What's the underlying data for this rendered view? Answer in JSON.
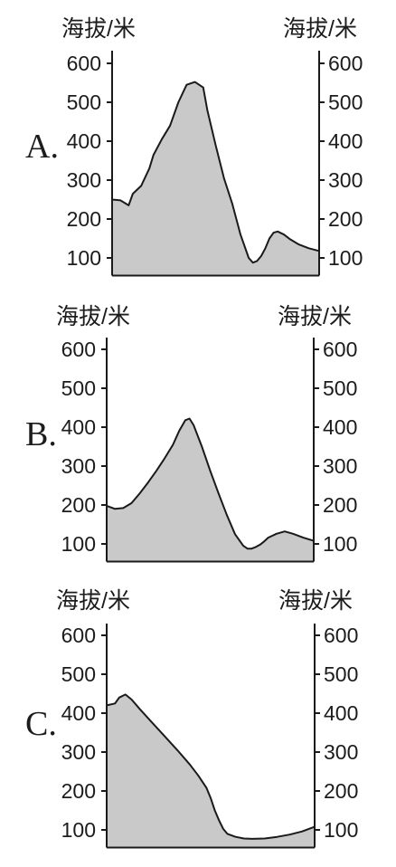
{
  "colors": {
    "fill": "#c9c9c9",
    "stroke": "#1a1a1a"
  },
  "chart_data": [
    {
      "type": "area",
      "option_label": "A.",
      "ylabel_left": "海拔/米",
      "ylabel_right": "海拔/米",
      "yticks": [
        100,
        200,
        300,
        400,
        500,
        600
      ],
      "ylim": [
        50,
        650
      ],
      "x": [
        0,
        0.04,
        0.08,
        0.1,
        0.14,
        0.18,
        0.2,
        0.24,
        0.28,
        0.32,
        0.36,
        0.4,
        0.44,
        0.46,
        0.5,
        0.54,
        0.58,
        0.62,
        0.66,
        0.68,
        0.7,
        0.72,
        0.74,
        0.76,
        0.78,
        0.8,
        0.83,
        0.86,
        0.9,
        0.95,
        1.0
      ],
      "y": [
        250,
        248,
        235,
        265,
        285,
        330,
        365,
        405,
        440,
        500,
        545,
        552,
        538,
        480,
        390,
        305,
        240,
        160,
        100,
        88,
        92,
        105,
        125,
        150,
        165,
        168,
        160,
        148,
        135,
        125,
        118
      ]
    },
    {
      "type": "area",
      "option_label": "B.",
      "ylabel_left": "海拔/米",
      "ylabel_right": "海拔/米",
      "yticks": [
        100,
        200,
        300,
        400,
        500,
        600
      ],
      "ylim": [
        50,
        650
      ],
      "x": [
        0,
        0.04,
        0.08,
        0.12,
        0.16,
        0.2,
        0.24,
        0.28,
        0.32,
        0.35,
        0.38,
        0.4,
        0.42,
        0.46,
        0.5,
        0.54,
        0.58,
        0.62,
        0.66,
        0.68,
        0.7,
        0.72,
        0.74,
        0.76,
        0.78,
        0.82,
        0.86,
        0.9,
        0.95,
        1.0
      ],
      "y": [
        198,
        190,
        192,
        205,
        230,
        258,
        288,
        320,
        355,
        390,
        418,
        422,
        405,
        350,
        288,
        230,
        175,
        125,
        95,
        88,
        88,
        92,
        98,
        106,
        116,
        126,
        132,
        126,
        116,
        108
      ]
    },
    {
      "type": "area",
      "option_label": "C.",
      "ylabel_left": "海拔/米",
      "ylabel_right": "海拔/米",
      "yticks": [
        100,
        200,
        300,
        400,
        500,
        600
      ],
      "ylim": [
        50,
        650
      ],
      "x": [
        0,
        0.04,
        0.06,
        0.09,
        0.12,
        0.16,
        0.22,
        0.28,
        0.34,
        0.4,
        0.44,
        0.48,
        0.5,
        0.52,
        0.54,
        0.56,
        0.58,
        0.62,
        0.66,
        0.7,
        0.76,
        0.82,
        0.88,
        0.94,
        1.0
      ],
      "y": [
        420,
        425,
        440,
        448,
        435,
        410,
        375,
        340,
        305,
        268,
        240,
        208,
        182,
        150,
        125,
        103,
        90,
        82,
        78,
        77,
        78,
        82,
        88,
        96,
        108
      ]
    }
  ]
}
